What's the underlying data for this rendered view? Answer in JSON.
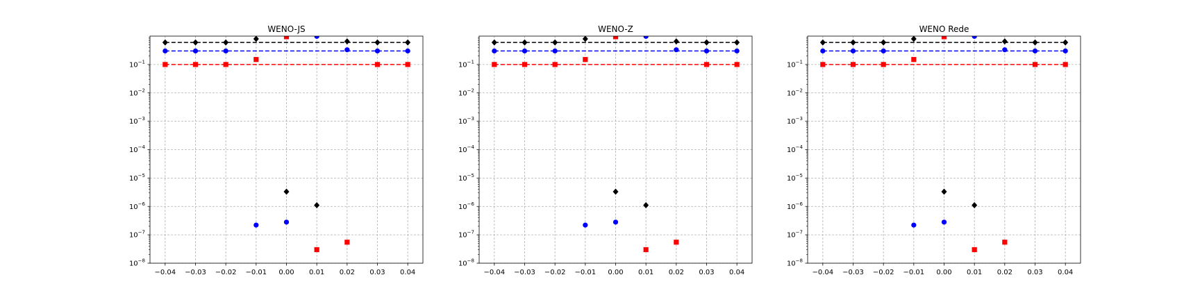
{
  "chart_data": [
    {
      "type": "scatter",
      "title": "WENO-JS",
      "xlabel": "",
      "ylabel": "",
      "xlim": [
        -0.045,
        0.045
      ],
      "ylim": [
        1e-08,
        1.0
      ],
      "yscale": "log",
      "grid": true,
      "xticks": [
        -0.04,
        -0.03,
        -0.02,
        -0.01,
        0.0,
        0.01,
        0.02,
        0.03,
        0.04
      ],
      "xtick_labels": [
        "−0.04",
        "−0.03",
        "−0.02",
        "−0.01",
        "0.00",
        "0.01",
        "0.02",
        "0.03",
        "0.04"
      ],
      "yticks": [
        {
          "value": 1e-08,
          "base": "10",
          "exp": "−8"
        },
        {
          "value": 1e-07,
          "base": "10",
          "exp": "−7"
        },
        {
          "value": 1e-06,
          "base": "10",
          "exp": "−6"
        },
        {
          "value": 1e-05,
          "base": "10",
          "exp": "−5"
        },
        {
          "value": 0.0001,
          "base": "10",
          "exp": "−4"
        },
        {
          "value": 0.001,
          "base": "10",
          "exp": "−3"
        },
        {
          "value": 0.01,
          "base": "10",
          "exp": "−2"
        },
        {
          "value": 0.1,
          "base": "10",
          "exp": "−1"
        }
      ],
      "reference_lines": [
        {
          "y": 0.6,
          "color": "#000000"
        },
        {
          "y": 0.3,
          "color": "#0000ff"
        },
        {
          "y": 0.1,
          "color": "#ff0000"
        }
      ],
      "series": [
        {
          "marker": "diamond",
          "color": "#000000",
          "x": [
            -0.04,
            -0.03,
            -0.02,
            -0.01,
            0.0,
            0.01,
            0.02,
            0.03,
            0.04
          ],
          "y": [
            0.6,
            0.6,
            0.6,
            0.8,
            3.3e-06,
            1.1e-06,
            0.65,
            0.6,
            0.6
          ]
        },
        {
          "marker": "circle",
          "color": "#0000ff",
          "x": [
            -0.04,
            -0.03,
            -0.02,
            -0.01,
            0.0,
            0.01,
            0.02,
            0.03,
            0.04
          ],
          "y": [
            0.3,
            0.3,
            0.3,
            2.2e-07,
            2.8e-07,
            0.98,
            0.33,
            0.3,
            0.3
          ]
        },
        {
          "marker": "square",
          "color": "#ff0000",
          "x": [
            -0.04,
            -0.03,
            -0.02,
            -0.01,
            0.0,
            0.01,
            0.02,
            0.03,
            0.04
          ],
          "y": [
            0.1,
            0.1,
            0.1,
            0.15,
            0.95,
            3e-08,
            5.5e-08,
            0.1,
            0.1
          ]
        }
      ]
    },
    {
      "type": "scatter",
      "title": "WENO-Z",
      "xlabel": "",
      "ylabel": "",
      "xlim": [
        -0.045,
        0.045
      ],
      "ylim": [
        1e-08,
        1.0
      ],
      "yscale": "log",
      "grid": true,
      "xticks": [
        -0.04,
        -0.03,
        -0.02,
        -0.01,
        0.0,
        0.01,
        0.02,
        0.03,
        0.04
      ],
      "xtick_labels": [
        "−0.04",
        "−0.03",
        "−0.02",
        "−0.01",
        "0.00",
        "0.01",
        "0.02",
        "0.03",
        "0.04"
      ],
      "yticks": [
        {
          "value": 1e-08,
          "base": "10",
          "exp": "−8"
        },
        {
          "value": 1e-07,
          "base": "10",
          "exp": "−7"
        },
        {
          "value": 1e-06,
          "base": "10",
          "exp": "−6"
        },
        {
          "value": 1e-05,
          "base": "10",
          "exp": "−5"
        },
        {
          "value": 0.0001,
          "base": "10",
          "exp": "−4"
        },
        {
          "value": 0.001,
          "base": "10",
          "exp": "−3"
        },
        {
          "value": 0.01,
          "base": "10",
          "exp": "−2"
        },
        {
          "value": 0.1,
          "base": "10",
          "exp": "−1"
        }
      ],
      "reference_lines": [
        {
          "y": 0.6,
          "color": "#000000"
        },
        {
          "y": 0.3,
          "color": "#0000ff"
        },
        {
          "y": 0.1,
          "color": "#ff0000"
        }
      ],
      "series": [
        {
          "marker": "diamond",
          "color": "#000000",
          "x": [
            -0.04,
            -0.03,
            -0.02,
            -0.01,
            0.0,
            0.01,
            0.02,
            0.03,
            0.04
          ],
          "y": [
            0.6,
            0.6,
            0.6,
            0.8,
            3.3e-06,
            1.1e-06,
            0.65,
            0.6,
            0.6
          ]
        },
        {
          "marker": "circle",
          "color": "#0000ff",
          "x": [
            -0.04,
            -0.03,
            -0.02,
            -0.01,
            0.0,
            0.01,
            0.02,
            0.03,
            0.04
          ],
          "y": [
            0.3,
            0.3,
            0.3,
            2.2e-07,
            2.8e-07,
            0.98,
            0.33,
            0.3,
            0.3
          ]
        },
        {
          "marker": "square",
          "color": "#ff0000",
          "x": [
            -0.04,
            -0.03,
            -0.02,
            -0.01,
            0.0,
            0.01,
            0.02,
            0.03,
            0.04
          ],
          "y": [
            0.1,
            0.1,
            0.1,
            0.15,
            0.95,
            3e-08,
            5.5e-08,
            0.1,
            0.1
          ]
        }
      ]
    },
    {
      "type": "scatter",
      "title": "WENO Rede",
      "xlabel": "",
      "ylabel": "",
      "xlim": [
        -0.045,
        0.045
      ],
      "ylim": [
        1e-08,
        1.0
      ],
      "yscale": "log",
      "grid": true,
      "xticks": [
        -0.04,
        -0.03,
        -0.02,
        -0.01,
        0.0,
        0.01,
        0.02,
        0.03,
        0.04
      ],
      "xtick_labels": [
        "−0.04",
        "−0.03",
        "−0.02",
        "−0.01",
        "0.00",
        "0.01",
        "0.02",
        "0.03",
        "0.04"
      ],
      "yticks": [
        {
          "value": 1e-08,
          "base": "10",
          "exp": "−8"
        },
        {
          "value": 1e-07,
          "base": "10",
          "exp": "−7"
        },
        {
          "value": 1e-06,
          "base": "10",
          "exp": "−6"
        },
        {
          "value": 1e-05,
          "base": "10",
          "exp": "−5"
        },
        {
          "value": 0.0001,
          "base": "10",
          "exp": "−4"
        },
        {
          "value": 0.001,
          "base": "10",
          "exp": "−3"
        },
        {
          "value": 0.01,
          "base": "10",
          "exp": "−2"
        },
        {
          "value": 0.1,
          "base": "10",
          "exp": "−1"
        }
      ],
      "reference_lines": [
        {
          "y": 0.6,
          "color": "#000000"
        },
        {
          "y": 0.3,
          "color": "#0000ff"
        },
        {
          "y": 0.1,
          "color": "#ff0000"
        }
      ],
      "series": [
        {
          "marker": "diamond",
          "color": "#000000",
          "x": [
            -0.04,
            -0.03,
            -0.02,
            -0.01,
            0.0,
            0.01,
            0.02,
            0.03,
            0.04
          ],
          "y": [
            0.6,
            0.6,
            0.6,
            0.8,
            3.3e-06,
            1.1e-06,
            0.65,
            0.6,
            0.6
          ]
        },
        {
          "marker": "circle",
          "color": "#0000ff",
          "x": [
            -0.04,
            -0.03,
            -0.02,
            -0.01,
            0.0,
            0.01,
            0.02,
            0.03,
            0.04
          ],
          "y": [
            0.3,
            0.3,
            0.3,
            2.2e-07,
            2.8e-07,
            0.98,
            0.33,
            0.3,
            0.3
          ]
        },
        {
          "marker": "square",
          "color": "#ff0000",
          "x": [
            -0.04,
            -0.03,
            -0.02,
            -0.01,
            0.0,
            0.01,
            0.02,
            0.03,
            0.04
          ],
          "y": [
            0.1,
            0.1,
            0.1,
            0.15,
            0.95,
            3e-08,
            5.5e-08,
            0.1,
            0.1
          ]
        }
      ]
    }
  ]
}
